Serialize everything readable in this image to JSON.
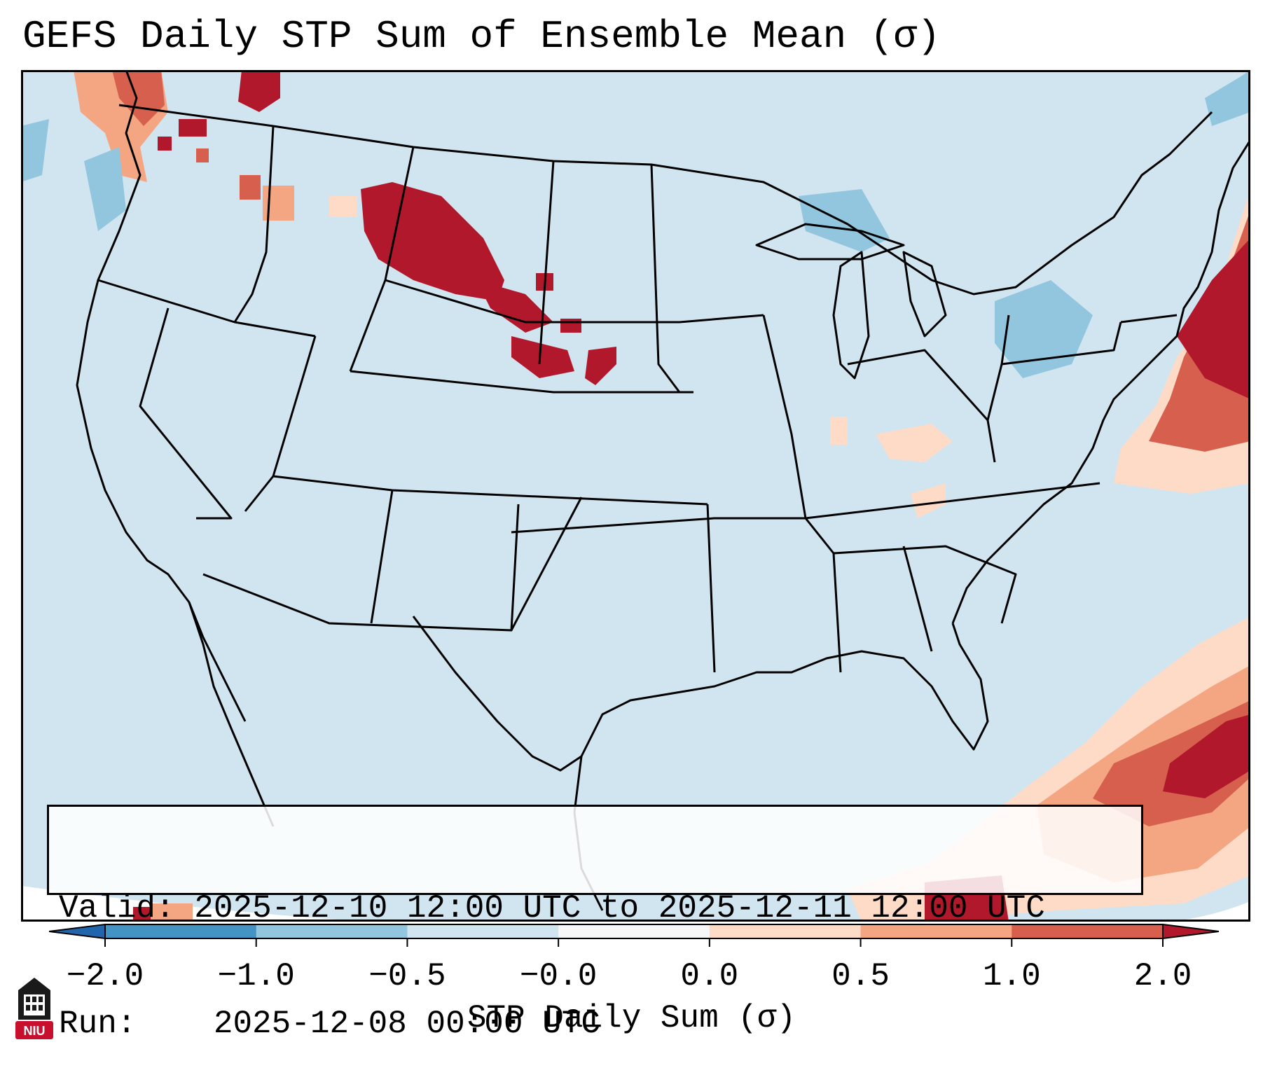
{
  "title": "GEFS Daily STP Sum of Ensemble Mean (σ)",
  "info": {
    "valid_label": "Valid:",
    "valid_value": "2025-12-10 12:00 UTC to 2025-12-11 12:00 UTC",
    "run_label": "Run:",
    "run_value": "2025-12-08 00:00 UTC"
  },
  "colorbar": {
    "label": "STP Daily Sum (σ)",
    "ticks": [
      "−2.0",
      "−1.0",
      "−0.5",
      "−0.0",
      "0.0",
      "0.5",
      "1.0",
      "2.0"
    ],
    "bin_colors": [
      "#4393c3",
      "#92c5de",
      "#d1e5f0",
      "#f7f7f7",
      "#fddbc7",
      "#f4a582",
      "#d6604d"
    ],
    "under_color": "#2166ac",
    "over_color": "#b2182b"
  },
  "map": {
    "background_value_color": "#d1e5f0",
    "outside_domain_color": "#ffffff",
    "boundary_color": "#000000",
    "region": "Contiguous United States"
  },
  "logo": {
    "text": "NIU",
    "icon": "niu-building-icon",
    "color": "#c8102e"
  }
}
